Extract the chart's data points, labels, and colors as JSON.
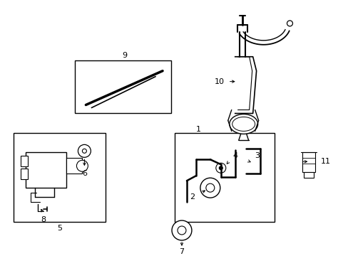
{
  "background_color": "#ffffff",
  "line_color": "#000000",
  "font_size": 8,
  "fig_width": 4.89,
  "fig_height": 3.6,
  "dpi": 100
}
